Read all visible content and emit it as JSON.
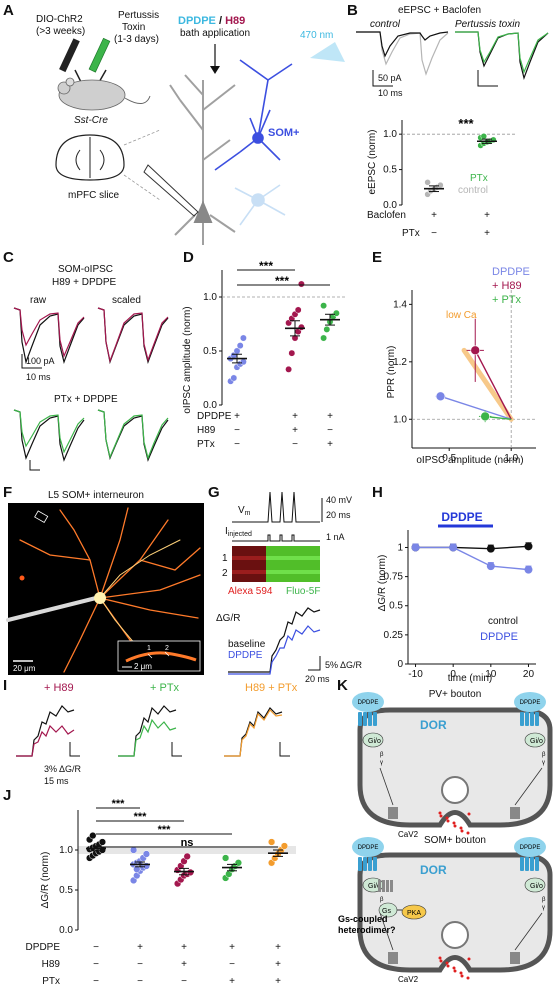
{
  "colors": {
    "dpdpe": "#7a86e6",
    "h89": "#a3174e",
    "ptx": "#3cb44a",
    "h89ptx": "#f39c2d",
    "grey": "#b5b5b5",
    "black": "#111111",
    "som": "#3c4fe0",
    "blue_light": "#8fd3ec",
    "dor": "#3a9fd0"
  },
  "panels": {
    "A": "A",
    "B": "B",
    "C": "C",
    "D": "D",
    "E": "E",
    "F": "F",
    "G": "G",
    "H": "H",
    "I": "I",
    "J": "J",
    "K": "K"
  },
  "A": {
    "virus1": "DIO-ChR2",
    "virus1b": "(>3 weeks)",
    "virus2a": "Pertussis",
    "virus2b": "Toxin",
    "virus2c": "(1-3 days)",
    "mouse": "Sst-Cre",
    "slice": "mPFC slice",
    "bath_dpdpe": "DPDPE",
    "bath_sep": " / ",
    "bath_h89": "H89",
    "bath_app": "bath application",
    "light": "470 nm",
    "som": "SOM+"
  },
  "B": {
    "title": "eEPSC + Baclofen",
    "control": "control",
    "ptx_title": "Pertussis toxin",
    "scale_pa": "50 pA",
    "scale_ms": "10 ms",
    "sig": "***",
    "ylabel": "eEPSC (norm)",
    "legend_ptx": "PTx",
    "legend_ctrl": "control",
    "row1": "Baclofen",
    "row2": "PTx",
    "row1_vals": [
      "+",
      "+"
    ],
    "row2_vals": [
      "−",
      "+"
    ]
  },
  "C": {
    "title1": "SOM-oIPSC",
    "title2": "H89 + DPDPE",
    "raw": "raw",
    "scaled": "scaled",
    "scale_pa": "100 pA",
    "scale_ms": "10 ms",
    "ptx_title": "PTx + DPDPE"
  },
  "D": {
    "sig1": "***",
    "sig2": "***",
    "ylabel": "oIPSC amplitude (norm)",
    "rows": [
      {
        "label": "DPDPE",
        "vals": [
          "+",
          "+",
          "+"
        ]
      },
      {
        "label": "H89",
        "vals": [
          "−",
          "+",
          "−"
        ]
      },
      {
        "label": "PTx",
        "vals": [
          "−",
          "−",
          "+"
        ]
      }
    ]
  },
  "E": {
    "legend_dpdpe": "DPDPE",
    "legend_h89": "+ H89",
    "legend_ptx": "+ PTx",
    "lowca": "low Ca",
    "ylabel": "PPR (norm)",
    "xlabel": "oIPSC amplitude (norm)"
  },
  "F": {
    "title": "L5 SOM+ interneuron",
    "scale": "20 μm",
    "inset_scale": "2 μm",
    "inset_1": "1",
    "inset_2": "2"
  },
  "G": {
    "vm": "V",
    "vm_sub": "m",
    "iinj": "I",
    "iinj_sub": "injected",
    "scale_mv": "40 mV",
    "scale_ms": "20 ms",
    "scale_na": "1 nA",
    "line1": "1",
    "line2": "2",
    "alexa": "Alexa 594",
    "fluo": "Fluo-5F",
    "dgr": "ΔG/R",
    "baseline": "baseline",
    "dpdpe": "DPDPE",
    "scale_pct": "5% ΔG/R",
    "scale_ms2": "20 ms"
  },
  "H": {
    "bar": "DPDPE",
    "ylabel": "ΔG/R (norm)",
    "xlabel": "time (min)",
    "legend_ctrl": "control",
    "legend_dpdpe": "DPDPE"
  },
  "I": {
    "h89": "+ H89",
    "ptx": "+ PTx",
    "h89ptx": "H89 + PTx",
    "scale_pct": "3% ΔG/R",
    "scale_ms": "15 ms"
  },
  "J": {
    "sig": [
      "***",
      "***",
      "***",
      "ns"
    ],
    "ylabel": "ΔG/R (norm)",
    "rows": [
      {
        "label": "DPDPE",
        "vals": [
          "−",
          "+",
          "+",
          "+",
          "+"
        ]
      },
      {
        "label": "H89",
        "vals": [
          "−",
          "−",
          "+",
          "−",
          "+"
        ]
      },
      {
        "label": "PTx",
        "vals": [
          "−",
          "−",
          "−",
          "+",
          "+"
        ]
      }
    ]
  },
  "K": {
    "pv_title": "PV+ bouton",
    "som_title": "SOM+ bouton",
    "dpdpe": "DPDPE",
    "dor": "DOR",
    "gio": "G",
    "gio_sub": "i/o",
    "beta": "β",
    "gamma": "γ",
    "cav": "Ca",
    "cav_sub": "V",
    "cav_n": "2",
    "gs": "G",
    "gs_sub": "s",
    "pka": "PKA",
    "gs_coupled1": "Gs-coupled",
    "gs_coupled2": "heterodimer?"
  },
  "chart_data": [
    {
      "panel": "B",
      "type": "scatter",
      "ylabel": "eEPSC (norm)",
      "ylim": [
        0,
        1.2
      ],
      "yticks": [
        0,
        0.5,
        1.0
      ],
      "groups": [
        {
          "name": "control",
          "mean": 0.23,
          "sem": 0.04,
          "points": [
            0.15,
            0.2,
            0.22,
            0.25,
            0.28,
            0.32
          ]
        },
        {
          "name": "PTx",
          "mean": 0.9,
          "sem": 0.03,
          "points": [
            0.84,
            0.87,
            0.89,
            0.9,
            0.92,
            0.95,
            0.97
          ]
        }
      ]
    },
    {
      "panel": "D",
      "type": "scatter",
      "ylabel": "oIPSC amplitude (norm)",
      "ylim": [
        0,
        1.25
      ],
      "yticks": [
        0,
        0.5,
        1.0
      ],
      "groups": [
        {
          "name": "DPDPE",
          "mean": 0.43,
          "sem": 0.04,
          "points": [
            0.22,
            0.25,
            0.35,
            0.38,
            0.4,
            0.43,
            0.46,
            0.5,
            0.55,
            0.62
          ]
        },
        {
          "name": "H89 + DPDPE",
          "mean": 0.71,
          "sem": 0.07,
          "points": [
            0.33,
            0.48,
            0.62,
            0.68,
            0.72,
            0.76,
            0.8,
            0.84,
            0.88,
            1.12
          ]
        },
        {
          "name": "PTx + DPDPE",
          "mean": 0.79,
          "sem": 0.05,
          "points": [
            0.62,
            0.7,
            0.77,
            0.82,
            0.85,
            0.92
          ]
        }
      ]
    },
    {
      "panel": "E",
      "type": "scatter",
      "xlabel": "oIPSC amplitude (norm)",
      "ylabel": "PPR (norm)",
      "xlim": [
        0.2,
        1.2
      ],
      "ylim": [
        0.9,
        1.45
      ],
      "xticks": [
        0.5,
        1.0
      ],
      "yticks": [
        1.0,
        1.2,
        1.4
      ],
      "points": [
        {
          "name": "DPDPE",
          "x": 0.43,
          "y": 1.08,
          "xerr": 0.04,
          "yerr": 0.01
        },
        {
          "name": "+ H89",
          "x": 0.71,
          "y": 1.24,
          "xerr": 0.07,
          "yerr": 0.11
        },
        {
          "name": "+ PTx",
          "x": 0.79,
          "y": 1.01,
          "xerr": 0.05,
          "yerr": 0.02
        }
      ]
    },
    {
      "panel": "H",
      "type": "line",
      "xlabel": "time (min)",
      "ylabel": "ΔG/R (norm)",
      "xlim": [
        -12,
        22
      ],
      "ylim": [
        0,
        1.15
      ],
      "xticks": [
        -10,
        0,
        10,
        20
      ],
      "yticks": [
        0,
        0.25,
        0.5,
        0.75,
        1.0
      ],
      "series": [
        {
          "name": "control",
          "x": [
            -10,
            0,
            10,
            20
          ],
          "y": [
            1.0,
            1.0,
            0.99,
            1.01
          ]
        },
        {
          "name": "DPDPE",
          "x": [
            -10,
            0,
            10,
            20
          ],
          "y": [
            1.0,
            1.0,
            0.84,
            0.81
          ]
        }
      ]
    },
    {
      "panel": "J",
      "type": "scatter",
      "ylabel": "ΔG/R (norm)",
      "ylim": [
        0,
        1.5
      ],
      "yticks": [
        0,
        0.5,
        1.0
      ],
      "groups": [
        {
          "name": "control",
          "mean": 1.02,
          "sem": 0.03,
          "points": [
            0.9,
            0.93,
            0.96,
            0.98,
            1.0,
            1.01,
            1.03,
            1.05,
            1.07,
            1.1,
            1.13,
            1.18
          ]
        },
        {
          "name": "DPDPE",
          "mean": 0.82,
          "sem": 0.03,
          "points": [
            0.62,
            0.68,
            0.74,
            0.78,
            0.8,
            0.82,
            0.84,
            0.86,
            0.9,
            0.95,
            1.0,
            0.76
          ]
        },
        {
          "name": "DPDPE + H89",
          "mean": 0.73,
          "sem": 0.04,
          "points": [
            0.58,
            0.63,
            0.68,
            0.7,
            0.72,
            0.75,
            0.8,
            0.86,
            0.92
          ]
        },
        {
          "name": "DPDPE + PTx",
          "mean": 0.78,
          "sem": 0.04,
          "points": [
            0.65,
            0.7,
            0.76,
            0.8,
            0.84,
            0.9
          ]
        },
        {
          "name": "DPDPE + H89 + PTx",
          "mean": 0.96,
          "sem": 0.04,
          "points": [
            0.84,
            0.9,
            0.95,
            1.0,
            1.05,
            1.1
          ]
        }
      ]
    }
  ]
}
